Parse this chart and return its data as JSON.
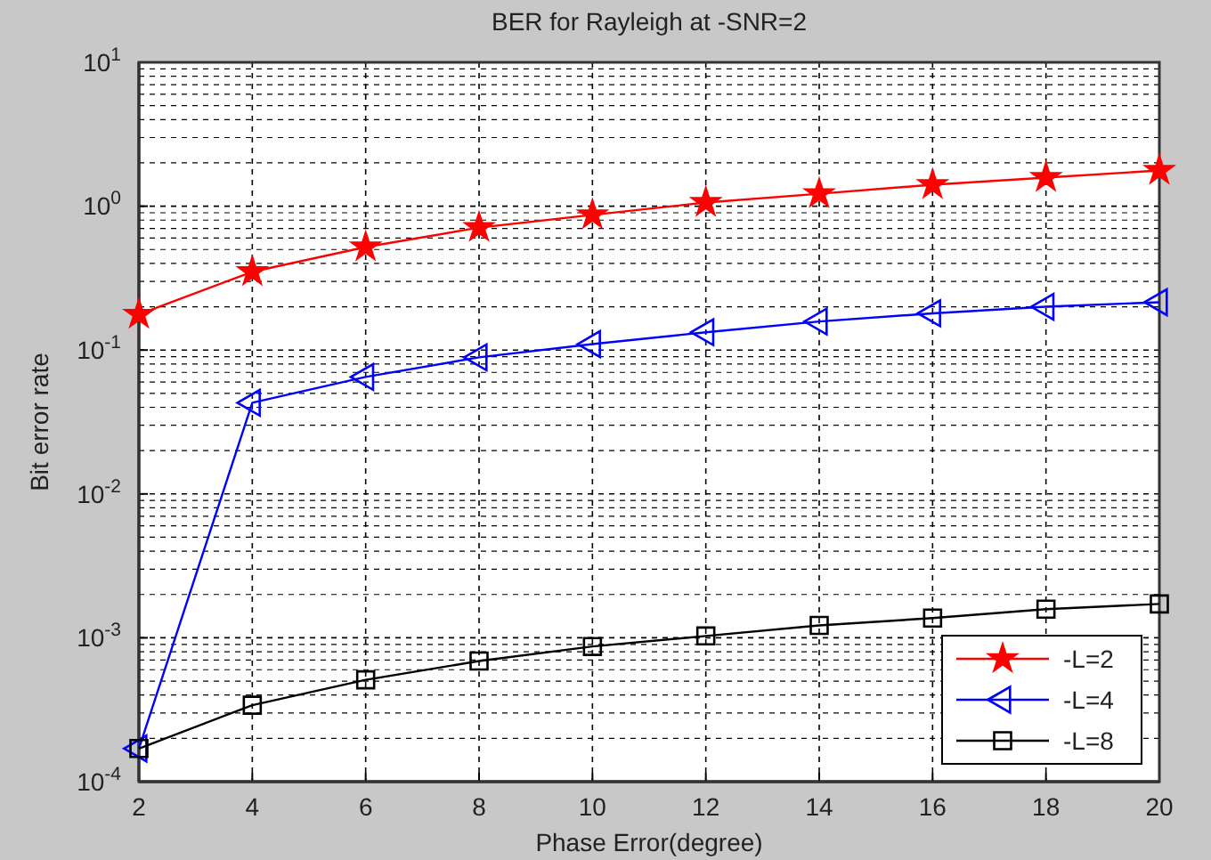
{
  "chart_data": {
    "type": "line",
    "title": "BER for Rayleigh at -SNR=2",
    "xlabel": "Phase Error(degree)",
    "ylabel": "Bit error rate",
    "x": [
      2,
      4,
      6,
      8,
      10,
      12,
      14,
      16,
      18,
      20
    ],
    "series": [
      {
        "name": "-L=2",
        "color": "#ff0000",
        "marker": "star",
        "values": [
          0.177,
          0.35,
          0.52,
          0.71,
          0.87,
          1.06,
          1.22,
          1.41,
          1.58,
          1.77
        ]
      },
      {
        "name": "-L=4",
        "color": "#0000ff",
        "marker": "triangle",
        "values": [
          0.00017,
          0.043,
          0.065,
          0.089,
          0.11,
          0.133,
          0.158,
          0.18,
          0.2,
          0.215
        ]
      },
      {
        "name": "-L=8",
        "color": "#000000",
        "marker": "square",
        "values": [
          0.00017,
          0.00034,
          0.00051,
          0.00069,
          0.00087,
          0.00103,
          0.00122,
          0.00137,
          0.00158,
          0.00172
        ]
      }
    ],
    "log": "y",
    "xlim": [
      2,
      20
    ],
    "xticks": [
      2,
      4,
      6,
      8,
      10,
      12,
      14,
      16,
      18,
      20
    ],
    "ylim": [
      0.0001,
      10
    ],
    "yticks": [
      {
        "value": 0.0001,
        "label": "10$^{-4}$"
      },
      {
        "value": 0.001,
        "label": "10$^{-3}$"
      },
      {
        "value": 0.01,
        "label": "10$^{-2}$"
      },
      {
        "value": 0.1,
        "label": "10$^{-1}$"
      },
      {
        "value": 1,
        "label": "10$^{0}$"
      },
      {
        "value": 10,
        "label": "10$^{1}$"
      }
    ],
    "grid": true,
    "legend": "bottom right",
    "line_style": "solid"
  }
}
